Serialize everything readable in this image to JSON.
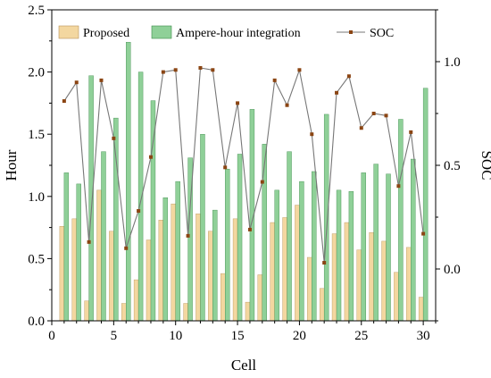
{
  "chart_data": {
    "type": "bar",
    "xlabel": "Cell",
    "ylabel": "Hour",
    "y2label": "SOC",
    "xlim": [
      0,
      31
    ],
    "ylim": [
      0,
      2.5
    ],
    "y2lim": [
      -0.25,
      1.25
    ],
    "x_ticks": [
      "0",
      "5",
      "10",
      "15",
      "20",
      "25",
      "30"
    ],
    "y_ticks": [
      "0.0",
      "0.5",
      "1.0",
      "1.5",
      "2.0",
      "2.5"
    ],
    "y2_ticks": [
      "0.0",
      "0.5",
      "1.0"
    ],
    "legend_position": "top",
    "x": [
      1,
      2,
      3,
      4,
      5,
      6,
      7,
      8,
      9,
      10,
      11,
      12,
      13,
      14,
      15,
      16,
      17,
      18,
      19,
      20,
      21,
      22,
      23,
      24,
      25,
      26,
      27,
      28,
      29,
      30
    ],
    "series": [
      {
        "name": "Proposed",
        "type": "bar",
        "color": "#f3d7a0",
        "values": [
          0.76,
          0.82,
          0.16,
          1.05,
          0.72,
          0.14,
          0.33,
          0.65,
          0.81,
          0.94,
          0.14,
          0.86,
          0.72,
          0.38,
          0.82,
          0.15,
          0.37,
          0.79,
          0.83,
          0.93,
          0.51,
          0.26,
          0.7,
          0.79,
          0.57,
          0.71,
          0.64,
          0.39,
          0.59,
          0.19
        ]
      },
      {
        "name": "Ampere-hour integration",
        "type": "bar",
        "color": "#8fd098",
        "values": [
          1.19,
          1.1,
          1.97,
          1.36,
          1.63,
          2.24,
          2.0,
          1.77,
          0.99,
          1.12,
          1.31,
          1.5,
          0.89,
          1.22,
          1.34,
          1.7,
          1.42,
          1.05,
          1.36,
          1.12,
          1.2,
          1.66,
          1.05,
          1.04,
          1.19,
          1.26,
          1.18,
          1.62,
          1.3,
          1.87
        ]
      },
      {
        "name": "SOC",
        "type": "line",
        "axis": "right",
        "color": "#8b4513",
        "values": [
          0.81,
          0.9,
          0.13,
          0.91,
          0.63,
          0.1,
          0.28,
          0.54,
          0.95,
          0.96,
          0.16,
          0.97,
          0.96,
          0.49,
          0.8,
          0.19,
          0.42,
          0.91,
          0.79,
          0.96,
          0.65,
          0.03,
          0.85,
          0.93,
          0.68,
          0.75,
          0.74,
          0.4,
          0.66,
          0.17
        ]
      }
    ]
  }
}
